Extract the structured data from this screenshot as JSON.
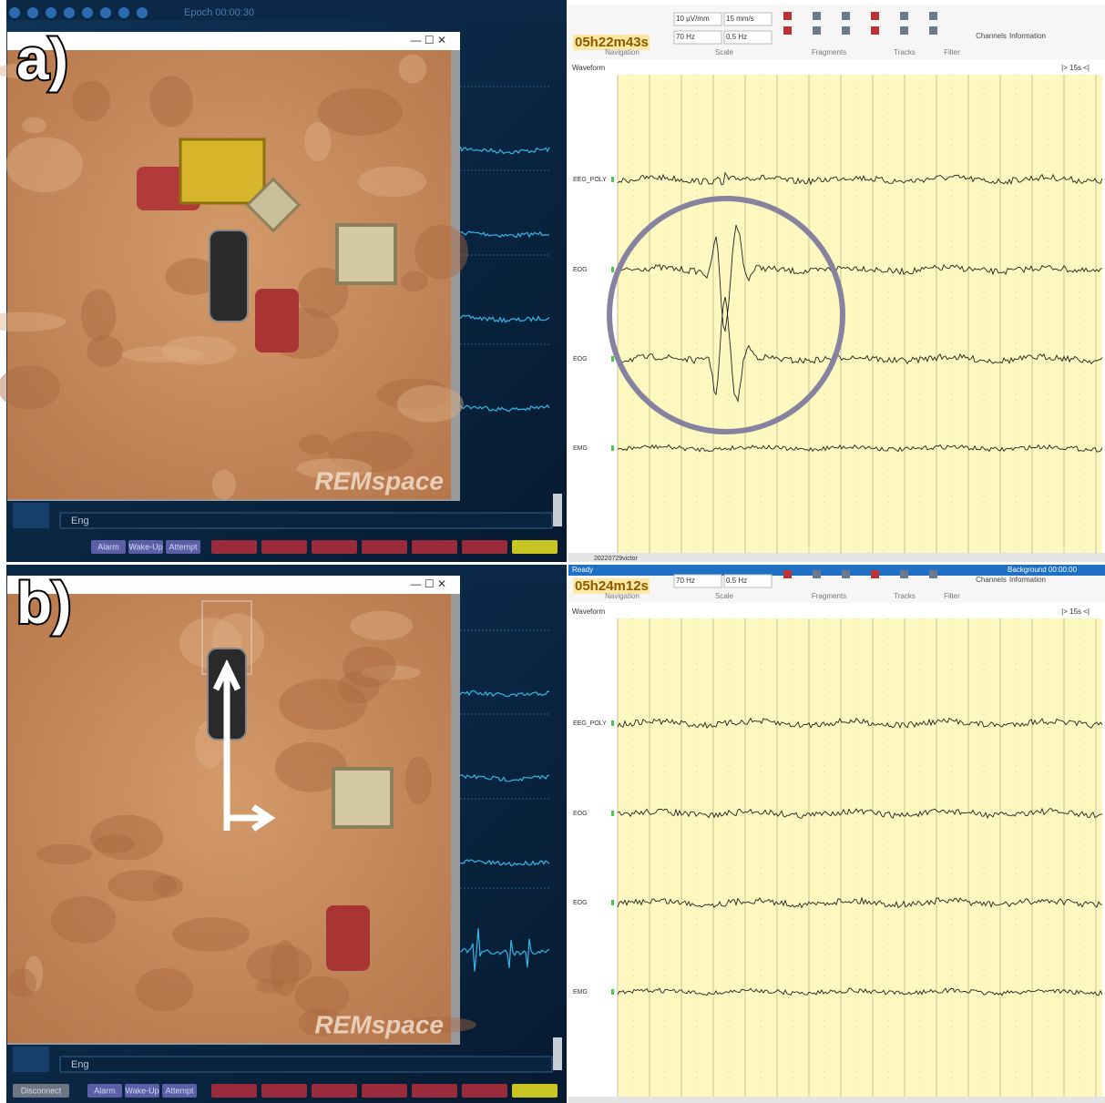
{
  "panels": [
    {
      "label": "a)",
      "game": {
        "top_text": "Epoch 00:00:30",
        "watermark": "REMspace",
        "language": "Eng",
        "buttons": [
          "Alarm",
          "Wake-Up",
          "Attempt"
        ]
      },
      "recorder": {
        "time": "05h22m43s",
        "settings": [
          "10 µV/mm",
          "15 mm/s",
          "70 Hz",
          "0.5 Hz"
        ],
        "groups": [
          "Navigation",
          "Scale",
          "Fragments",
          "Tracks",
          "Filter"
        ],
        "tools": [
          "Channels",
          "Information"
        ],
        "view": "Waveform",
        "window": "|> 15s <|",
        "channels": [
          "EEG_POLY",
          "EOG",
          "EOG",
          "EMG"
        ],
        "file": "20220729victor"
      }
    },
    {
      "label": "b)",
      "game": {
        "watermark": "REMspace",
        "language": "Eng",
        "buttons": [
          "Disconnect",
          "Alarm",
          "Wake-Up",
          "Attempt"
        ]
      },
      "recorder": {
        "status": "Ready",
        "background": "Background 00:00:00",
        "time": "05h24m12s",
        "settings": [
          "70 Hz",
          "0.5 Hz"
        ],
        "groups": [
          "Navigation",
          "Scale",
          "Fragments",
          "Tracks",
          "Filter"
        ],
        "tools": [
          "Channels",
          "Information"
        ],
        "view": "Waveform",
        "window": "|> 15s <|",
        "channels": [
          "EEG_POLY",
          "EOG",
          "EOG",
          "EMG"
        ]
      }
    }
  ]
}
